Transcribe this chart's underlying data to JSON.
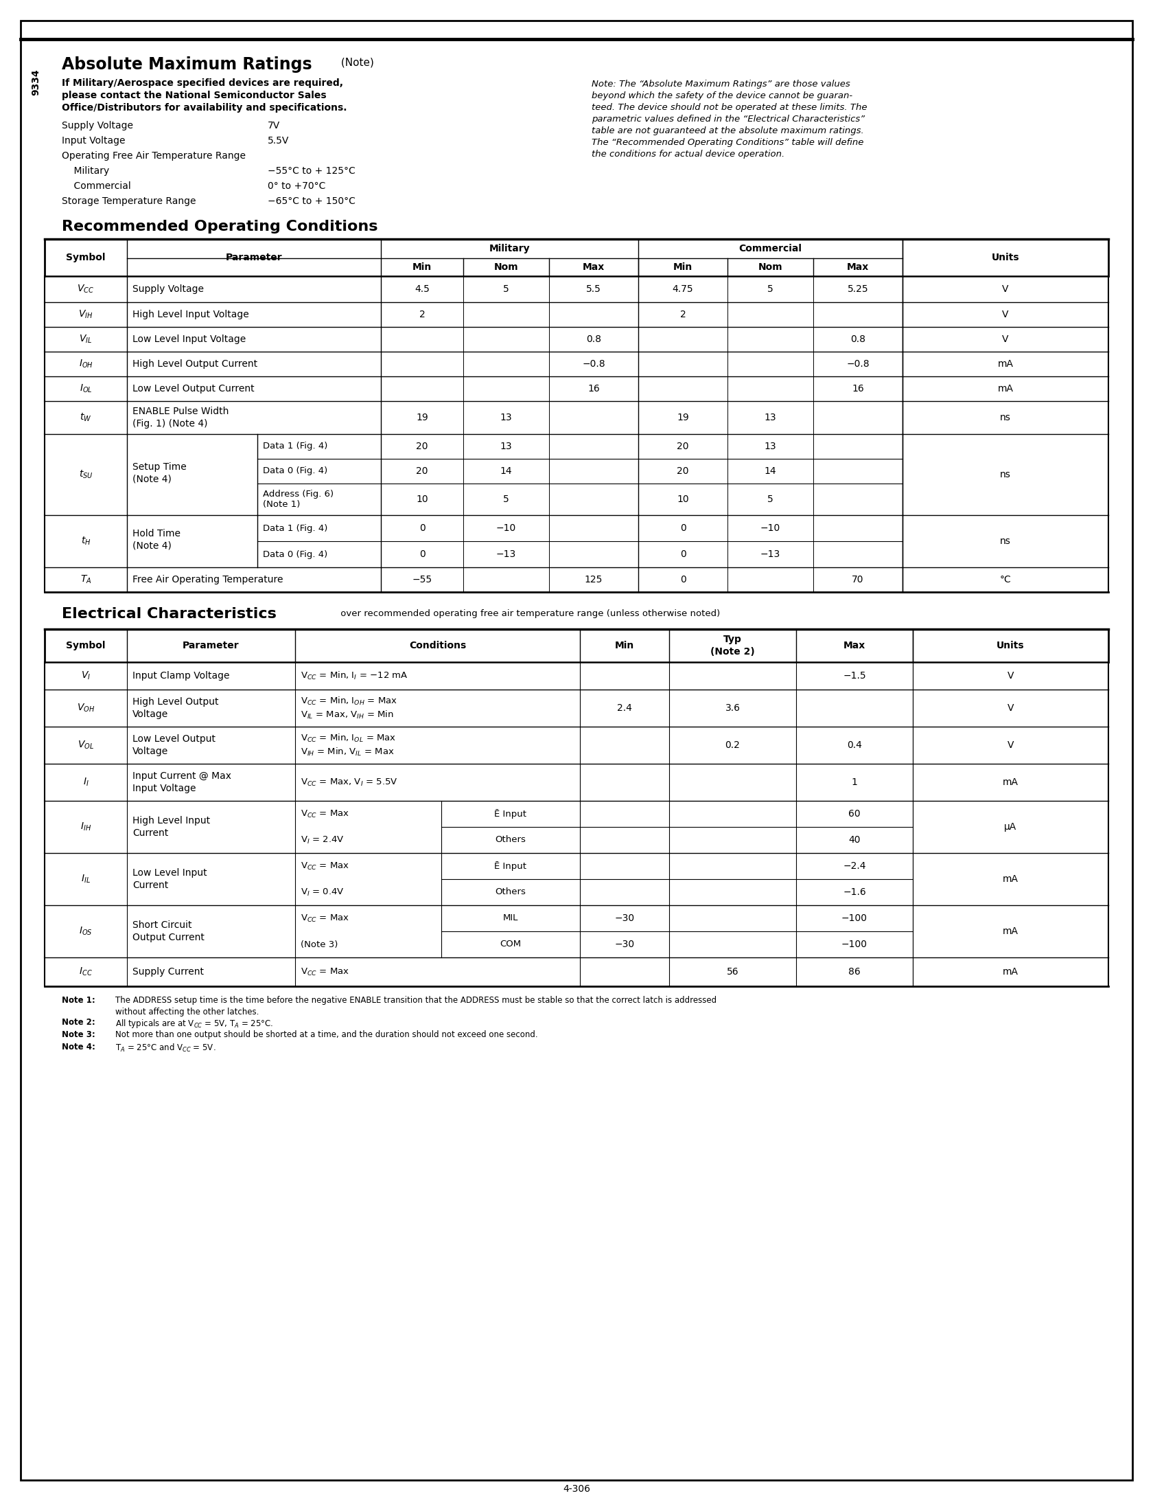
{
  "page_bg": "#ffffff",
  "title_amr": "Absolute Maximum Ratings",
  "title_amr_note": " (Note)",
  "amr_bold_text_lines": [
    "If Military/Aerospace specified devices are required,",
    "please contact the National Semiconductor Sales",
    "Office/Distributors for availability and specifications."
  ],
  "amr_items": [
    [
      "Supply Voltage",
      "7V"
    ],
    [
      "Input Voltage",
      "5.5V"
    ],
    [
      "Operating Free Air Temperature Range",
      ""
    ],
    [
      "    Military",
      "−55°C to + 125°C"
    ],
    [
      "    Commercial",
      "0° to +70°C"
    ],
    [
      "Storage Temperature Range",
      "−65°C to + 150°C"
    ]
  ],
  "amr_note_lines": [
    "Note: The “Absolute Maximum Ratings” are those values",
    "beyond which the safety of the device cannot be guaran-",
    "teed. The device should not be operated at these limits. The",
    "parametric values defined in the “Electrical Characteristics”",
    "table are not guaranteed at the absolute maximum ratings.",
    "The “Recommended Operating Conditions” table will define",
    "the conditions for actual device operation."
  ],
  "title_roc": "Recommended Operating Conditions",
  "title_ec": "Electrical Characteristics",
  "ec_subtitle": " over recommended operating free air temperature range (unless otherwise noted)",
  "page_number": "4-306",
  "sidebar_text": "9334"
}
